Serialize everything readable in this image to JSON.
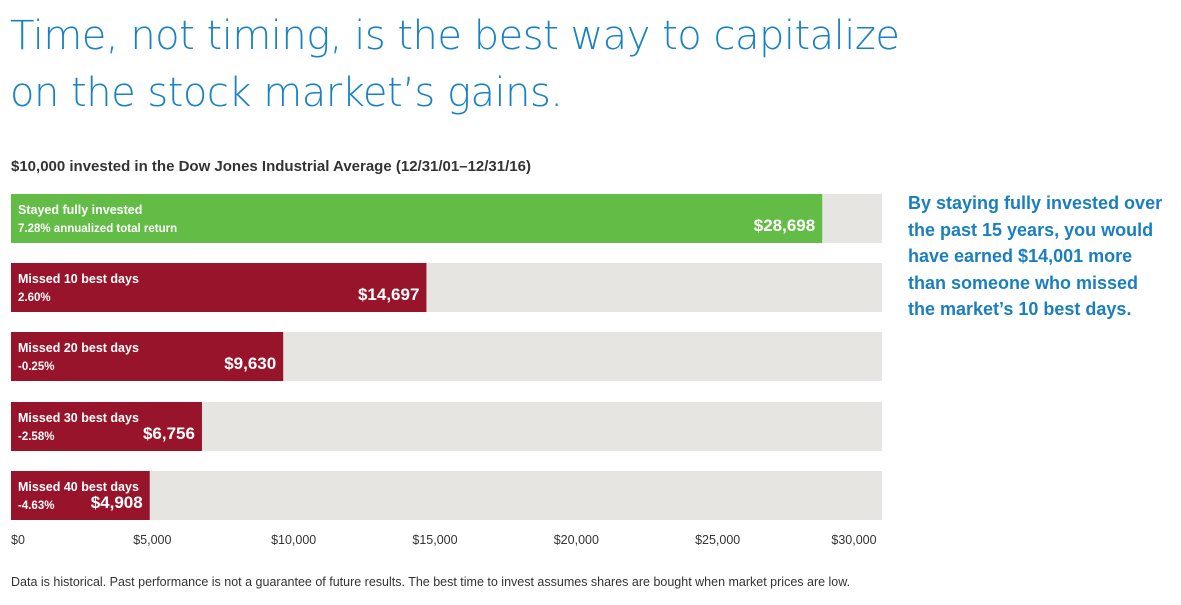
{
  "headline": {
    "line1": "Time, not timing, is the best way to capitalize",
    "line2": "on the stock market’s gains."
  },
  "subtitle": "$10,000 invested in the Dow Jones Industrial Average (12/31/01–12/31/16)",
  "callout": "By staying fully invested over the past 15 years, you would have earned $14,001 more than someone who missed the market’s 10 best days.",
  "footnote": "Data is historical. Past performance is not a guarantee of future results. The best time to invest assumes shares are bought when market prices are low.",
  "colors": {
    "headline": "#1a82c3",
    "green": "#63bc46",
    "red": "#98142b",
    "track": "#e6e5e1",
    "callout": "#1a7fbf"
  },
  "chart_data": {
    "type": "bar",
    "orientation": "horizontal",
    "xlim": [
      0,
      30000
    ],
    "ticks": [
      "$0",
      "$5,000",
      "$10,000",
      "$15,000",
      "$20,000",
      "$25,000",
      "$30,000"
    ],
    "tick_values": [
      0,
      5000,
      10000,
      15000,
      20000,
      25000,
      30000
    ],
    "bars": [
      {
        "label": "Stayed fully invested",
        "sublabel": "7.28% annualized total return",
        "value": 28698,
        "value_label": "$28,698",
        "color": "#63bc46"
      },
      {
        "label": "Missed 10 best days",
        "sublabel": "2.60%",
        "value": 14697,
        "value_label": "$14,697",
        "color": "#98142b"
      },
      {
        "label": "Missed 20 best days",
        "sublabel": "-0.25%",
        "value": 9630,
        "value_label": "$9,630",
        "color": "#98142b"
      },
      {
        "label": "Missed 30 best days",
        "sublabel": "-2.58%",
        "value": 6756,
        "value_label": "$6,756",
        "color": "#98142b"
      },
      {
        "label": "Missed 40 best days",
        "sublabel": "-4.63%",
        "value": 4908,
        "value_label": "$4,908",
        "color": "#98142b"
      }
    ]
  }
}
